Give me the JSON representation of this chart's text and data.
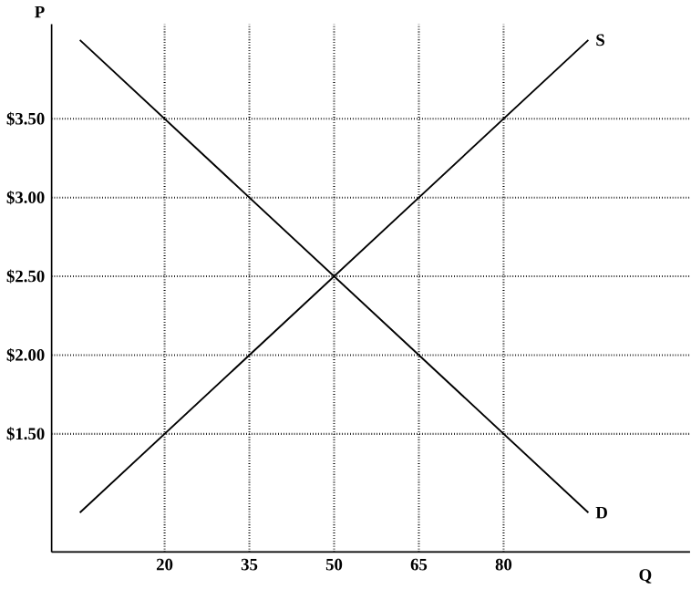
{
  "chart_data": {
    "type": "line",
    "xlabel": "Q",
    "ylabel": "P",
    "xlim": [
      0,
      113
    ],
    "ylim": [
      0.75,
      4.1
    ],
    "xticks": [
      20,
      35,
      50,
      65,
      80
    ],
    "yticks": [
      {
        "value": 1.5,
        "label": "$1.50"
      },
      {
        "value": 2.0,
        "label": "$2.00"
      },
      {
        "value": 2.5,
        "label": "$2.50"
      },
      {
        "value": 3.0,
        "label": "$3.00"
      },
      {
        "value": 3.5,
        "label": "$3.50"
      }
    ],
    "x": [
      5,
      95
    ],
    "grid": true,
    "line_style": "solid",
    "marker": "none",
    "legend": false,
    "series": [
      {
        "name": "S",
        "color": "#000000",
        "values": [
          1.0,
          4.0
        ]
      },
      {
        "name": "D",
        "color": "#000000",
        "values": [
          4.0,
          1.0
        ]
      }
    ]
  }
}
